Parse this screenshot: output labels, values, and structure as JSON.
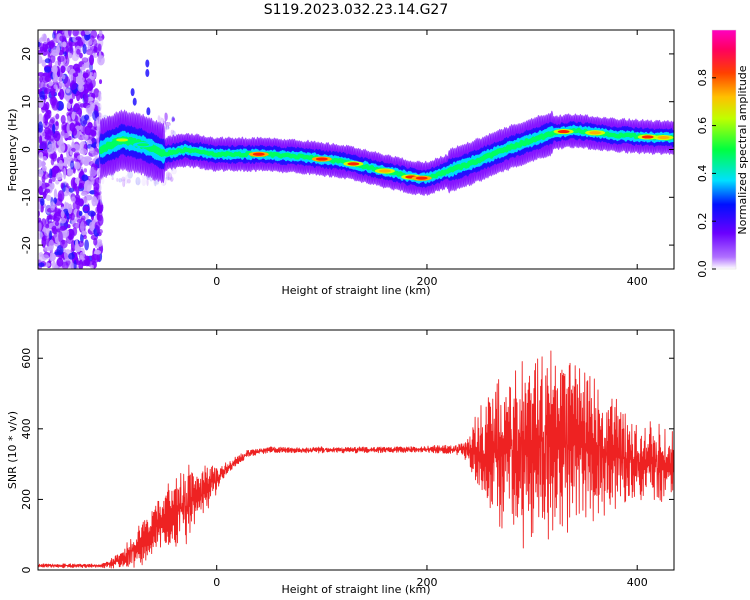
{
  "title": "S119.2023.032.23.14.G27",
  "chart_data": [
    {
      "type": "heatmap",
      "xlabel": "Height of straight line (km)",
      "ylabel": "Frequency (Hz)",
      "xlim": [
        -170,
        435
      ],
      "ylim": [
        -25,
        25
      ],
      "x_ticks": [
        0,
        200,
        400
      ],
      "y_ticks": [
        -20,
        -10,
        0,
        10,
        20
      ],
      "grid": false,
      "colorbar": {
        "label": "Normalized spectral amplitude",
        "range": [
          0,
          1
        ],
        "ticks": [
          0.0,
          0.2,
          0.4,
          0.6,
          0.8
        ],
        "colors": [
          "#ffffff",
          "#7000ff",
          "#0000ff",
          "#00ffff",
          "#00ff00",
          "#ffff00",
          "#ff8000",
          "#ff0000",
          "#ff00ff"
        ]
      },
      "ridge": {
        "x": [
          -110,
          -90,
          -70,
          -50,
          -30,
          0,
          40,
          80,
          120,
          160,
          190,
          200,
          240,
          280,
          320,
          340,
          380,
          420,
          435
        ],
        "y": [
          0,
          2,
          1,
          -1,
          0,
          -1,
          -1,
          -1.5,
          -2.5,
          -4.5,
          -6,
          -6,
          -3,
          0.5,
          3.5,
          4,
          3,
          2.5,
          2.5
        ]
      }
    },
    {
      "type": "line",
      "xlabel": "Height of straight line (km)",
      "ylabel": "SNR (10 * v/v)",
      "xlim": [
        -170,
        435
      ],
      "ylim": [
        0,
        680
      ],
      "x_ticks": [
        0,
        200,
        400
      ],
      "y_ticks": [
        0,
        200,
        400,
        600
      ],
      "grid": false,
      "color": "#ee2222",
      "envelope": {
        "x": [
          -170,
          -110,
          -90,
          -70,
          -50,
          -30,
          -10,
          10,
          30,
          50,
          100,
          150,
          200,
          235,
          260,
          290,
          320,
          340,
          370,
          400,
          435
        ],
        "y": [
          12,
          12,
          30,
          80,
          150,
          180,
          230,
          290,
          330,
          340,
          340,
          340,
          342,
          340,
          330,
          340,
          360,
          360,
          330,
          310,
          300
        ],
        "spread": [
          5,
          5,
          25,
          60,
          80,
          100,
          60,
          15,
          10,
          8,
          8,
          8,
          8,
          20,
          180,
          240,
          260,
          230,
          160,
          120,
          100
        ]
      }
    }
  ]
}
